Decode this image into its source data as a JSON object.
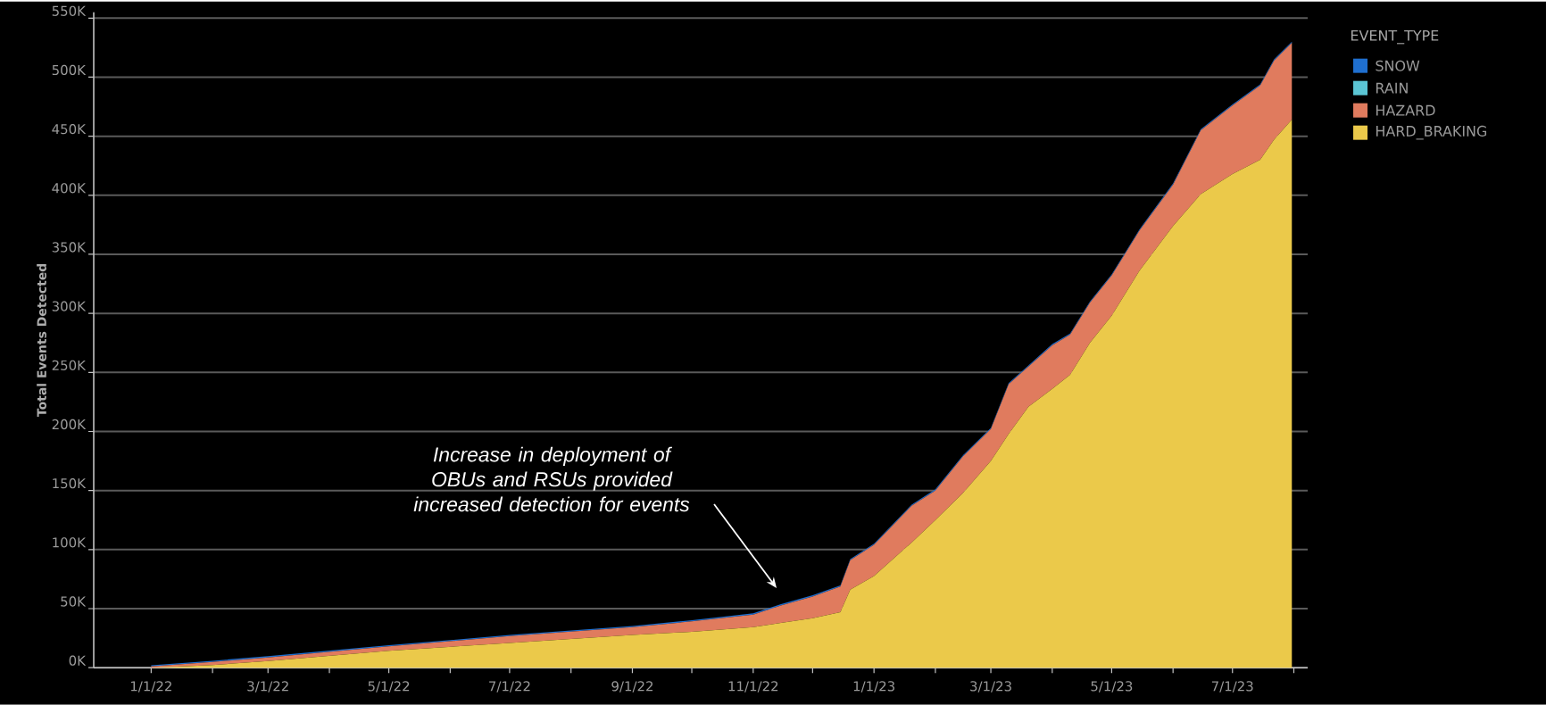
{
  "chart_data": {
    "type": "area",
    "stacked": true,
    "ylabel": "Total Events Detected",
    "legend_title": "EVENT_TYPE",
    "legend": "right",
    "grid": "y",
    "x": [
      "2022-01-01",
      "2022-02-01",
      "2022-03-01",
      "2022-05-01",
      "2022-07-01",
      "2022-09-01",
      "2022-10-01",
      "2022-11-01",
      "2022-11-15",
      "2022-12-01",
      "2022-12-15",
      "2022-12-20",
      "2023-01-01",
      "2023-01-20",
      "2023-02-01",
      "2023-02-15",
      "2023-03-01",
      "2023-03-10",
      "2023-03-20",
      "2023-04-01",
      "2023-04-10",
      "2023-04-20",
      "2023-05-01",
      "2023-05-15",
      "2023-06-01",
      "2023-06-15",
      "2023-07-01",
      "2023-07-15",
      "2023-07-22",
      "2023-07-31"
    ],
    "series": [
      {
        "name": "HARD_BRAKING",
        "color": "#ebc94a",
        "values": [
          0,
          2300,
          5600,
          14300,
          21000,
          27700,
          30400,
          34300,
          38000,
          41900,
          46900,
          66000,
          77500,
          106000,
          125000,
          148000,
          175000,
          198000,
          221000,
          236000,
          248000,
          275000,
          298000,
          336000,
          374000,
          401000,
          418000,
          430000,
          447000,
          464000
        ]
      },
      {
        "name": "HAZARD",
        "color": "#e07b5e",
        "values": [
          1000,
          2600,
          3100,
          3700,
          5700,
          6600,
          8800,
          10700,
          14700,
          18400,
          21800,
          25000,
          26500,
          31000,
          25000,
          31000,
          27000,
          42000,
          34000,
          37000,
          34000,
          34000,
          34000,
          34000,
          35000,
          54000,
          58000,
          63000,
          67000,
          65000
        ]
      },
      {
        "name": "RAIN",
        "color": "#5bc5d4",
        "values": [
          null,
          null,
          null,
          null,
          null,
          null,
          null,
          null,
          null,
          null,
          null,
          null,
          null,
          null,
          null,
          null,
          null,
          null,
          null,
          null,
          null,
          null,
          null,
          null,
          null,
          null,
          null,
          null,
          null,
          null
        ]
      },
      {
        "name": "SNOW",
        "color": "#1f6fcf",
        "values": [
          1000,
          1000,
          1000,
          1000,
          1000,
          1000,
          1000,
          1000,
          1000,
          1000,
          1000,
          1000,
          1000,
          1000,
          1000,
          1000,
          1000,
          1000,
          1000,
          1000,
          1000,
          1000,
          1000,
          1000,
          1000,
          1000,
          1000,
          1000,
          1000,
          1000
        ]
      }
    ],
    "xlim": [
      "2021-12-03",
      "2023-08-08"
    ],
    "xticks": [
      {
        "value": "2022-01-01",
        "label": "1/1/22"
      },
      {
        "value": "2022-02-01",
        "label": null
      },
      {
        "value": "2022-03-01",
        "label": "3/1/22"
      },
      {
        "value": "2022-04-01",
        "label": null
      },
      {
        "value": "2022-05-01",
        "label": "5/1/22"
      },
      {
        "value": "2022-06-01",
        "label": null
      },
      {
        "value": "2022-07-01",
        "label": "7/1/22"
      },
      {
        "value": "2022-08-01",
        "label": null
      },
      {
        "value": "2022-09-01",
        "label": "9/1/22"
      },
      {
        "value": "2022-10-01",
        "label": null
      },
      {
        "value": "2022-11-01",
        "label": "11/1/22"
      },
      {
        "value": "2022-12-01",
        "label": null
      },
      {
        "value": "2023-01-01",
        "label": "1/1/23"
      },
      {
        "value": "2023-02-01",
        "label": null
      },
      {
        "value": "2023-03-01",
        "label": "3/1/23"
      },
      {
        "value": "2023-04-01",
        "label": null
      },
      {
        "value": "2023-05-01",
        "label": "5/1/23"
      },
      {
        "value": "2023-06-01",
        "label": null
      },
      {
        "value": "2023-07-01",
        "label": "7/1/23"
      },
      {
        "value": "2023-08-01",
        "label": null
      }
    ],
    "ylim": [
      0,
      555000
    ],
    "yticks": [
      {
        "value": 0,
        "label": "0K"
      },
      {
        "value": 50000,
        "label": "50K"
      },
      {
        "value": 100000,
        "label": "100K"
      },
      {
        "value": 150000,
        "label": "150K"
      },
      {
        "value": 200000,
        "label": "200K"
      },
      {
        "value": 250000,
        "label": "250K"
      },
      {
        "value": 300000,
        "label": "300K"
      },
      {
        "value": 350000,
        "label": "350K"
      },
      {
        "value": 400000,
        "label": "400K"
      },
      {
        "value": 450000,
        "label": "450K"
      },
      {
        "value": 500000,
        "label": "500K"
      },
      {
        "value": 550000,
        "label": "550K"
      }
    ],
    "annotations": [
      "Increase in deployment of OBUs and RSUs provided increased detection for events"
    ]
  }
}
